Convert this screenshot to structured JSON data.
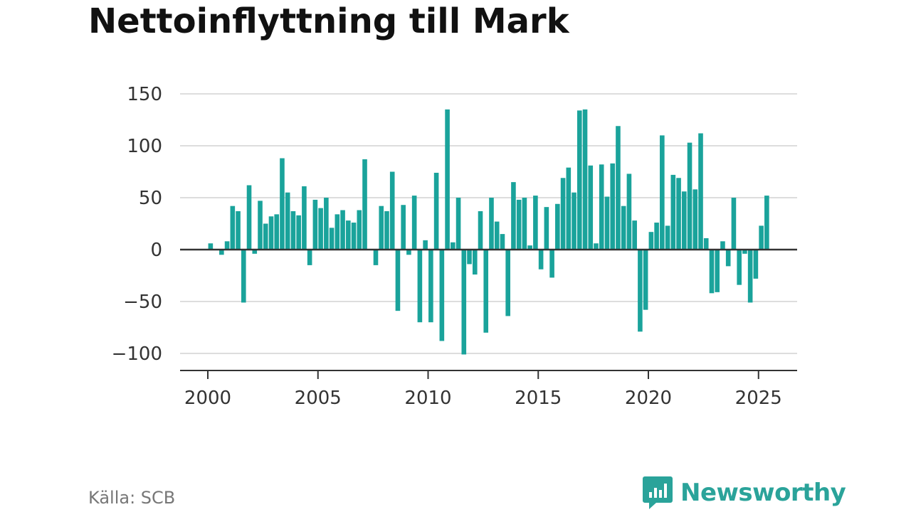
{
  "title": "Nettoinflyttning till Mark",
  "source": "Källa: SCB",
  "brand": {
    "name": "Newsworthy",
    "icon": "newsworthy-logo-icon",
    "color": "#2aa39a"
  },
  "colors": {
    "bar": "#1aa39b",
    "grid": "#dddddd",
    "zero_line": "#333333",
    "axis": "#333333"
  },
  "chart_data": {
    "type": "bar",
    "title": "Nettoinflyttning till Mark",
    "xlabel": "",
    "ylabel": "",
    "ylim": [
      -110,
      150
    ],
    "xlim": [
      1999.5,
      2026.2
    ],
    "yticks": [
      150,
      100,
      50,
      0,
      -50,
      -100
    ],
    "ytick_labels": [
      "150",
      "100",
      "50",
      "0",
      "−50",
      "−100"
    ],
    "xticks": [
      2000,
      2005,
      2010,
      2015,
      2020,
      2025
    ],
    "xtick_labels": [
      "2000",
      "2005",
      "2010",
      "2015",
      "2020",
      "2025"
    ],
    "grid": true,
    "series": [
      {
        "x": [
          2000.125,
          2000.375,
          2000.625,
          2000.875,
          2001.125,
          2001.375,
          2001.625,
          2001.875,
          2002.125,
          2002.375,
          2002.625,
          2002.875,
          2003.125,
          2003.375,
          2003.625,
          2003.875,
          2004.125,
          2004.375,
          2004.625,
          2004.875,
          2005.125,
          2005.375,
          2005.625,
          2005.875,
          2006.125,
          2006.375,
          2006.625,
          2006.875,
          2007.125,
          2007.375,
          2007.625,
          2007.875,
          2008.125,
          2008.375,
          2008.625,
          2008.875,
          2009.125,
          2009.375,
          2009.625,
          2009.875,
          2010.125,
          2010.375,
          2010.625,
          2010.875,
          2011.125,
          2011.375,
          2011.625,
          2011.875,
          2012.125,
          2012.375,
          2012.625,
          2012.875,
          2013.125,
          2013.375,
          2013.625,
          2013.875,
          2014.125,
          2014.375,
          2014.625,
          2014.875,
          2015.125,
          2015.375,
          2015.625,
          2015.875,
          2016.125,
          2016.375,
          2016.625,
          2016.875,
          2017.125,
          2017.375,
          2017.625,
          2017.875,
          2018.125,
          2018.375,
          2018.625,
          2018.875,
          2019.125,
          2019.375,
          2019.625,
          2019.875,
          2020.125,
          2020.375,
          2020.625,
          2020.875,
          2021.125,
          2021.375,
          2021.625,
          2021.875,
          2022.125,
          2022.375,
          2022.625,
          2022.875,
          2023.125,
          2023.375,
          2023.625,
          2023.875,
          2024.125,
          2024.375,
          2024.625,
          2024.875,
          2025.125,
          2025.375
        ],
        "values": [
          6,
          0,
          -5,
          8,
          42,
          37,
          -51,
          62,
          -4,
          47,
          25,
          32,
          34,
          88,
          55,
          37,
          33,
          61,
          -15,
          48,
          40,
          50,
          21,
          34,
          38,
          28,
          26,
          38,
          87,
          0,
          -15,
          42,
          37,
          75,
          -59,
          43,
          -5,
          52,
          -70,
          9,
          -70,
          74,
          -88,
          135,
          7,
          50,
          -101,
          -14,
          -24,
          37,
          -80,
          50,
          27,
          15,
          -64,
          65,
          48,
          50,
          4,
          52,
          -19,
          41,
          -27,
          44,
          69,
          79,
          55,
          134,
          135,
          81,
          6,
          82,
          51,
          83,
          119,
          42,
          73,
          28,
          -79,
          -58,
          17,
          26,
          110,
          23,
          72,
          69,
          56,
          103,
          58,
          112,
          11,
          -42,
          -41,
          8,
          -16,
          50,
          -34,
          -4,
          -51,
          -28,
          23,
          52
        ]
      }
    ]
  }
}
